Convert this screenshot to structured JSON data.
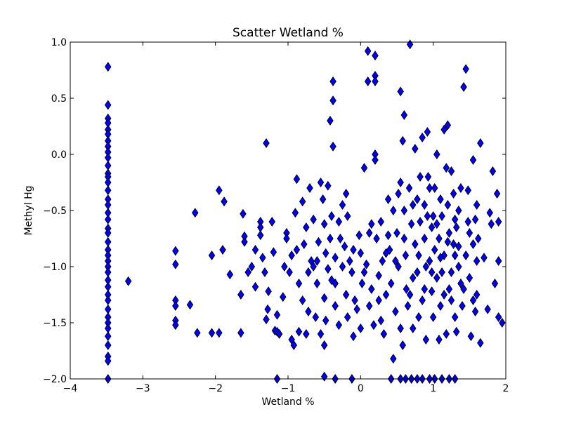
{
  "chart_data": {
    "type": "scatter",
    "title": "Scatter Wetland %",
    "xlabel": "Wetland %",
    "ylabel": "Methyl Hg",
    "xlim": [
      -4,
      2
    ],
    "ylim": [
      -2.0,
      1.0
    ],
    "xticks": [
      -4,
      -3,
      -2,
      -1,
      0,
      1,
      2
    ],
    "yticks": [
      -2.0,
      -1.5,
      -1.0,
      -0.5,
      0.0,
      0.5,
      1.0
    ],
    "xtick_labels": [
      "−4",
      "−3",
      "−2",
      "−1",
      "0",
      "1",
      "2"
    ],
    "ytick_labels": [
      "−2.0",
      "−1.5",
      "−1.0",
      "−0.5",
      "0.0",
      "0.5",
      "1.0"
    ],
    "grid": false,
    "marker": "diamond",
    "marker_color": "#0000ff",
    "marker_edge_color": "#000000",
    "series": [
      {
        "points": [
          [
            -3.48,
            0.78
          ],
          [
            -3.48,
            0.44
          ],
          [
            -3.48,
            0.32
          ],
          [
            -3.48,
            0.28
          ],
          [
            -3.48,
            0.22
          ],
          [
            -3.48,
            0.18
          ],
          [
            -3.48,
            0.12
          ],
          [
            -3.48,
            0.07
          ],
          [
            -3.48,
            0.02
          ],
          [
            -3.48,
            -0.03
          ],
          [
            -3.48,
            -0.1
          ],
          [
            -3.48,
            -0.17
          ],
          [
            -3.48,
            -0.2
          ],
          [
            -3.48,
            -0.25
          ],
          [
            -3.48,
            -0.32
          ],
          [
            -3.48,
            -0.4
          ],
          [
            -3.48,
            -0.45
          ],
          [
            -3.48,
            -0.52
          ],
          [
            -3.48,
            -0.58
          ],
          [
            -3.48,
            -0.66
          ],
          [
            -3.48,
            -0.7
          ],
          [
            -3.48,
            -0.78
          ],
          [
            -3.48,
            -0.85
          ],
          [
            -3.48,
            -0.9
          ],
          [
            -3.48,
            -0.95
          ],
          [
            -3.48,
            -1.0
          ],
          [
            -3.48,
            -1.05
          ],
          [
            -3.48,
            -1.12
          ],
          [
            -3.48,
            -1.18
          ],
          [
            -3.48,
            -1.25
          ],
          [
            -3.48,
            -1.3
          ],
          [
            -3.48,
            -1.38
          ],
          [
            -3.48,
            -1.45
          ],
          [
            -3.48,
            -1.5
          ],
          [
            -3.48,
            -1.55
          ],
          [
            -3.48,
            -1.62
          ],
          [
            -3.48,
            -1.7
          ],
          [
            -3.48,
            -1.8
          ],
          [
            -3.48,
            -1.84
          ],
          [
            -3.48,
            -2.0
          ],
          [
            -3.2,
            -1.13
          ],
          [
            -2.55,
            -0.86
          ],
          [
            -2.55,
            -0.98
          ],
          [
            -2.55,
            -1.3
          ],
          [
            -2.55,
            -1.35
          ],
          [
            -2.55,
            -1.48
          ],
          [
            -2.55,
            -1.52
          ],
          [
            -2.35,
            -1.34
          ],
          [
            -2.28,
            -0.52
          ],
          [
            -2.25,
            -1.59
          ],
          [
            -2.05,
            -0.9
          ],
          [
            -2.05,
            -1.59
          ],
          [
            -1.95,
            -0.32
          ],
          [
            -1.95,
            -1.59
          ],
          [
            -1.9,
            -0.85
          ],
          [
            -1.88,
            -0.42
          ],
          [
            -1.8,
            -1.07
          ],
          [
            -1.65,
            -1.59
          ],
          [
            -1.65,
            -1.25
          ],
          [
            -1.62,
            -0.53
          ],
          [
            -1.6,
            -0.73
          ],
          [
            -1.6,
            -0.78
          ],
          [
            -1.55,
            -1.05
          ],
          [
            -1.5,
            -1.0
          ],
          [
            -1.45,
            -0.85
          ],
          [
            -1.45,
            -1.18
          ],
          [
            -1.38,
            -0.6
          ],
          [
            -1.38,
            -0.65
          ],
          [
            -1.38,
            -0.72
          ],
          [
            -1.35,
            -0.92
          ],
          [
            -1.32,
            -1.05
          ],
          [
            -1.3,
            -1.47
          ],
          [
            -1.28,
            -1.38
          ],
          [
            -1.27,
            -1.22
          ],
          [
            -1.3,
            0.1
          ],
          [
            -1.22,
            -0.6
          ],
          [
            -1.2,
            -0.87
          ],
          [
            -1.18,
            -1.57
          ],
          [
            -1.15,
            -1.58
          ],
          [
            -1.15,
            -1.43
          ],
          [
            -1.12,
            -1.6
          ],
          [
            -1.07,
            -1.27
          ],
          [
            -1.05,
            -1.0
          ],
          [
            -1.02,
            -0.7
          ],
          [
            -1.02,
            -0.75
          ],
          [
            -0.98,
            -1.05
          ],
          [
            -0.95,
            -1.65
          ],
          [
            -0.92,
            -1.7
          ],
          [
            -0.88,
            -0.22
          ],
          [
            -0.9,
            -0.52
          ],
          [
            -0.88,
            -0.85
          ],
          [
            -0.85,
            -1.58
          ],
          [
            -0.8,
            -0.42
          ],
          [
            -0.78,
            -0.8
          ],
          [
            -0.75,
            -1.6
          ],
          [
            -0.72,
            -1.4
          ],
          [
            -0.7,
            -0.3
          ],
          [
            -0.68,
            -0.95
          ],
          [
            -0.65,
            -1.0
          ],
          [
            -0.6,
            -1.15
          ],
          [
            -0.55,
            -0.25
          ],
          [
            -0.52,
            -0.4
          ],
          [
            -0.5,
            -0.62
          ],
          [
            -0.48,
            -0.88
          ],
          [
            -0.5,
            -1.28
          ],
          [
            -0.48,
            -1.48
          ],
          [
            -0.5,
            -1.7
          ],
          [
            -0.5,
            -1.98
          ],
          [
            -0.45,
            -0.28
          ],
          [
            -0.42,
            0.3
          ],
          [
            -0.42,
            -0.75
          ],
          [
            -0.4,
            -1.12
          ],
          [
            -0.38,
            0.65
          ],
          [
            -0.38,
            0.48
          ],
          [
            -0.35,
            -0.92
          ],
          [
            -0.35,
            -1.15
          ],
          [
            -0.38,
            0.07
          ],
          [
            -0.3,
            -1.52
          ],
          [
            -0.25,
            -0.45
          ],
          [
            -0.22,
            -0.82
          ],
          [
            -0.2,
            -1.25
          ],
          [
            -0.18,
            -1.45
          ],
          [
            -0.15,
            -0.95
          ],
          [
            -0.12,
            -1.05
          ],
          [
            -0.1,
            -1.62
          ],
          [
            -0.05,
            -1.38
          ],
          [
            -0.02,
            -0.72
          ],
          [
            0.0,
            -0.88
          ],
          [
            0.05,
            -0.12
          ],
          [
            0.05,
            -1.05
          ],
          [
            0.1,
            0.92
          ],
          [
            0.1,
            0.65
          ],
          [
            0.12,
            -0.7
          ],
          [
            0.15,
            -1.2
          ],
          [
            0.18,
            -1.52
          ],
          [
            0.2,
            0.88
          ],
          [
            0.2,
            0.7
          ],
          [
            0.2,
            0.65
          ],
          [
            0.2,
            0.0
          ],
          [
            0.2,
            -0.05
          ],
          [
            0.22,
            -0.75
          ],
          [
            0.25,
            -1.08
          ],
          [
            0.28,
            -1.48
          ],
          [
            0.3,
            -0.95
          ],
          [
            0.35,
            -1.25
          ],
          [
            0.38,
            -0.4
          ],
          [
            0.4,
            -0.85
          ],
          [
            0.45,
            -1.82
          ],
          [
            0.5,
            -0.7
          ],
          [
            0.52,
            -1.0
          ],
          [
            0.55,
            -0.25
          ],
          [
            0.55,
            0.56
          ],
          [
            0.58,
            0.12
          ],
          [
            0.6,
            0.35
          ],
          [
            0.6,
            -0.5
          ],
          [
            0.62,
            -0.9
          ],
          [
            0.65,
            -1.35
          ],
          [
            0.68,
            0.98
          ],
          [
            0.7,
            -0.62
          ],
          [
            0.72,
            -1.1
          ],
          [
            0.75,
            0.05
          ],
          [
            0.78,
            -0.4
          ],
          [
            0.8,
            -1.45
          ],
          [
            0.82,
            -0.2
          ],
          [
            0.85,
            0.15
          ],
          [
            0.88,
            -0.75
          ],
          [
            0.9,
            -1.0
          ],
          [
            0.92,
            0.2
          ],
          [
            0.95,
            -0.3
          ],
          [
            0.98,
            -1.22
          ],
          [
            1.0,
            -0.55
          ],
          [
            1.02,
            -0.85
          ],
          [
            1.05,
            0.0
          ],
          [
            1.08,
            -1.65
          ],
          [
            1.1,
            -0.4
          ],
          [
            1.12,
            -1.05
          ],
          [
            1.15,
            0.22
          ],
          [
            1.18,
            -0.12
          ],
          [
            1.2,
            0.26
          ],
          [
            1.22,
            -0.7
          ],
          [
            1.25,
            -1.3
          ],
          [
            1.28,
            -0.35
          ],
          [
            1.3,
            -0.9
          ],
          [
            1.32,
            -1.58
          ],
          [
            1.35,
            -0.5
          ],
          [
            1.38,
            -1.15
          ],
          [
            1.42,
            0.6
          ],
          [
            1.45,
            0.76
          ],
          [
            1.48,
            -0.32
          ],
          [
            1.5,
            -0.7
          ],
          [
            1.52,
            -1.62
          ],
          [
            1.55,
            -0.05
          ],
          [
            1.58,
            -0.58
          ],
          [
            1.6,
            -1.25
          ],
          [
            1.65,
            0.1
          ],
          [
            1.65,
            -1.68
          ],
          [
            1.7,
            -0.92
          ],
          [
            1.75,
            -1.38
          ],
          [
            1.78,
            -0.52
          ],
          [
            1.8,
            -0.62
          ],
          [
            1.82,
            -0.15
          ],
          [
            1.85,
            -1.15
          ],
          [
            1.88,
            -0.35
          ],
          [
            1.9,
            -0.6
          ],
          [
            1.9,
            -0.95
          ],
          [
            1.9,
            -1.45
          ],
          [
            1.95,
            -1.5
          ],
          [
            0.55,
            -2.0
          ],
          [
            0.62,
            -2.0
          ],
          [
            0.7,
            -2.0
          ],
          [
            0.78,
            -2.0
          ],
          [
            0.85,
            -2.0
          ],
          [
            0.95,
            -2.0
          ],
          [
            1.02,
            -2.0
          ],
          [
            1.12,
            -2.0
          ],
          [
            1.22,
            -2.0
          ],
          [
            1.3,
            -2.0
          ],
          [
            0.42,
            -2.0
          ],
          [
            -0.12,
            -2.0
          ],
          [
            -0.35,
            -2.0
          ],
          [
            -1.15,
            -2.0
          ],
          [
            -0.3,
            -0.6
          ],
          [
            -0.25,
            -1.0
          ],
          [
            -0.2,
            -0.35
          ],
          [
            -0.08,
            -1.3
          ],
          [
            0.0,
            -1.55
          ],
          [
            0.08,
            -0.98
          ],
          [
            0.12,
            -1.35
          ],
          [
            0.28,
            -0.6
          ],
          [
            0.32,
            -1.6
          ],
          [
            0.35,
            -0.88
          ],
          [
            0.42,
            -1.15
          ],
          [
            0.45,
            -0.5
          ],
          [
            0.48,
            -1.4
          ],
          [
            0.52,
            -0.35
          ],
          [
            0.58,
            -1.7
          ],
          [
            0.63,
            -1.2
          ],
          [
            0.67,
            -0.3
          ],
          [
            0.72,
            -1.55
          ],
          [
            0.75,
            -0.8
          ],
          [
            0.78,
            -1.05
          ],
          [
            0.82,
            -0.6
          ],
          [
            0.85,
            -1.3
          ],
          [
            0.88,
            -0.45
          ],
          [
            0.9,
            -1.65
          ],
          [
            0.93,
            -0.2
          ],
          [
            0.95,
            -0.95
          ],
          [
            0.98,
            -0.65
          ],
          [
            1.0,
            -1.45
          ],
          [
            1.02,
            -0.3
          ],
          [
            1.05,
            -1.1
          ],
          [
            1.08,
            -0.75
          ],
          [
            1.1,
            -1.35
          ],
          [
            1.12,
            -0.55
          ],
          [
            1.15,
            -0.9
          ],
          [
            1.18,
            -1.6
          ],
          [
            1.2,
            -0.45
          ],
          [
            1.22,
            -1.2
          ],
          [
            1.25,
            -0.15
          ],
          [
            1.28,
            -0.8
          ],
          [
            1.3,
            -1.45
          ],
          [
            1.32,
            -0.65
          ],
          [
            1.35,
            -1.0
          ],
          [
            1.38,
            -0.3
          ],
          [
            1.4,
            -1.35
          ],
          [
            1.45,
            -0.9
          ],
          [
            1.5,
            -1.1
          ],
          [
            1.55,
            -0.8
          ],
          [
            1.58,
            -1.4
          ],
          [
            1.6,
            -0.45
          ],
          [
            1.62,
            -0.75
          ],
          [
            -0.45,
            -1.02
          ],
          [
            -0.4,
            -0.55
          ],
          [
            -0.35,
            -1.35
          ],
          [
            -0.28,
            -0.75
          ],
          [
            -0.18,
            -0.55
          ],
          [
            -0.1,
            -0.85
          ],
          [
            0.02,
            -1.15
          ],
          [
            0.15,
            -0.62
          ],
          [
            0.25,
            -1.3
          ],
          [
            0.38,
            -0.72
          ],
          [
            0.48,
            -0.95
          ],
          [
            0.55,
            -1.55
          ],
          [
            0.6,
            -0.75
          ],
          [
            0.68,
            -1.25
          ],
          [
            0.72,
            -0.45
          ],
          [
            0.8,
            -0.9
          ],
          [
            0.88,
            -1.2
          ],
          [
            0.92,
            -0.55
          ],
          [
            0.98,
            -1.05
          ],
          [
            1.05,
            -0.62
          ],
          [
            1.1,
            -0.92
          ],
          [
            1.15,
            -1.25
          ],
          [
            1.2,
            -0.78
          ],
          [
            1.25,
            -1.05
          ],
          [
            1.3,
            -0.58
          ],
          [
            1.35,
            -0.82
          ],
          [
            1.42,
            -1.2
          ],
          [
            1.48,
            -0.6
          ],
          [
            1.55,
            -1.3
          ],
          [
            1.6,
            -0.95
          ],
          [
            -0.72,
            -1.05
          ],
          [
            -0.8,
            -1.3
          ],
          [
            -0.62,
            -1.45
          ],
          [
            -0.58,
            -0.78
          ],
          [
            -0.65,
            -0.58
          ],
          [
            -0.85,
            -1.15
          ],
          [
            -0.75,
            -0.65
          ],
          [
            -0.95,
            -0.9
          ],
          [
            -0.55,
            -1.6
          ],
          [
            -0.6,
            -0.95
          ]
        ]
      }
    ]
  }
}
